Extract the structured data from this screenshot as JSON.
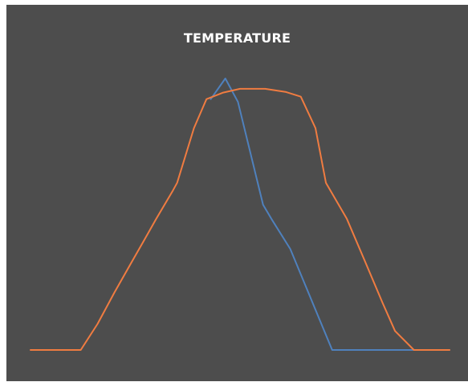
{
  "chart_data": {
    "type": "line",
    "title": "TEMPERATURE",
    "xlabel": "",
    "ylabel": "",
    "ylim": [
      0,
      100
    ],
    "grid": false,
    "legend": "none",
    "colors": {
      "background": "#4d4d4d",
      "title": "#ffffff"
    },
    "series": [
      {
        "color": "#4f81bd",
        "points": [
          [
            43.0,
            92.4
          ],
          [
            46.5,
            100.0
          ],
          [
            49.5,
            91.4
          ],
          [
            55.5,
            53.5
          ],
          [
            57.5,
            48.3
          ],
          [
            62.0,
            37.2
          ],
          [
            72.0,
            0.0
          ],
          [
            100.0,
            0.0
          ]
        ]
      },
      {
        "color": "#f07c41",
        "points": [
          [
            0.0,
            0.0
          ],
          [
            12.0,
            0.0
          ],
          [
            16.0,
            9.6
          ],
          [
            20.0,
            21.1
          ],
          [
            24.0,
            32.0
          ],
          [
            27.0,
            40.1
          ],
          [
            30.0,
            48.3
          ],
          [
            34.0,
            58.8
          ],
          [
            35.0,
            61.6
          ],
          [
            39.0,
            81.7
          ],
          [
            42.0,
            92.4
          ],
          [
            46.0,
            94.8
          ],
          [
            50.0,
            96.2
          ],
          [
            56.0,
            96.2
          ],
          [
            61.0,
            95.0
          ],
          [
            64.5,
            93.3
          ],
          [
            68.0,
            81.7
          ],
          [
            70.5,
            61.6
          ],
          [
            75.5,
            48.3
          ],
          [
            80.0,
            32.0
          ],
          [
            84.0,
            17.4
          ],
          [
            87.0,
            7.0
          ],
          [
            91.5,
            0.0
          ],
          [
            100.0,
            0.0
          ]
        ]
      }
    ]
  }
}
